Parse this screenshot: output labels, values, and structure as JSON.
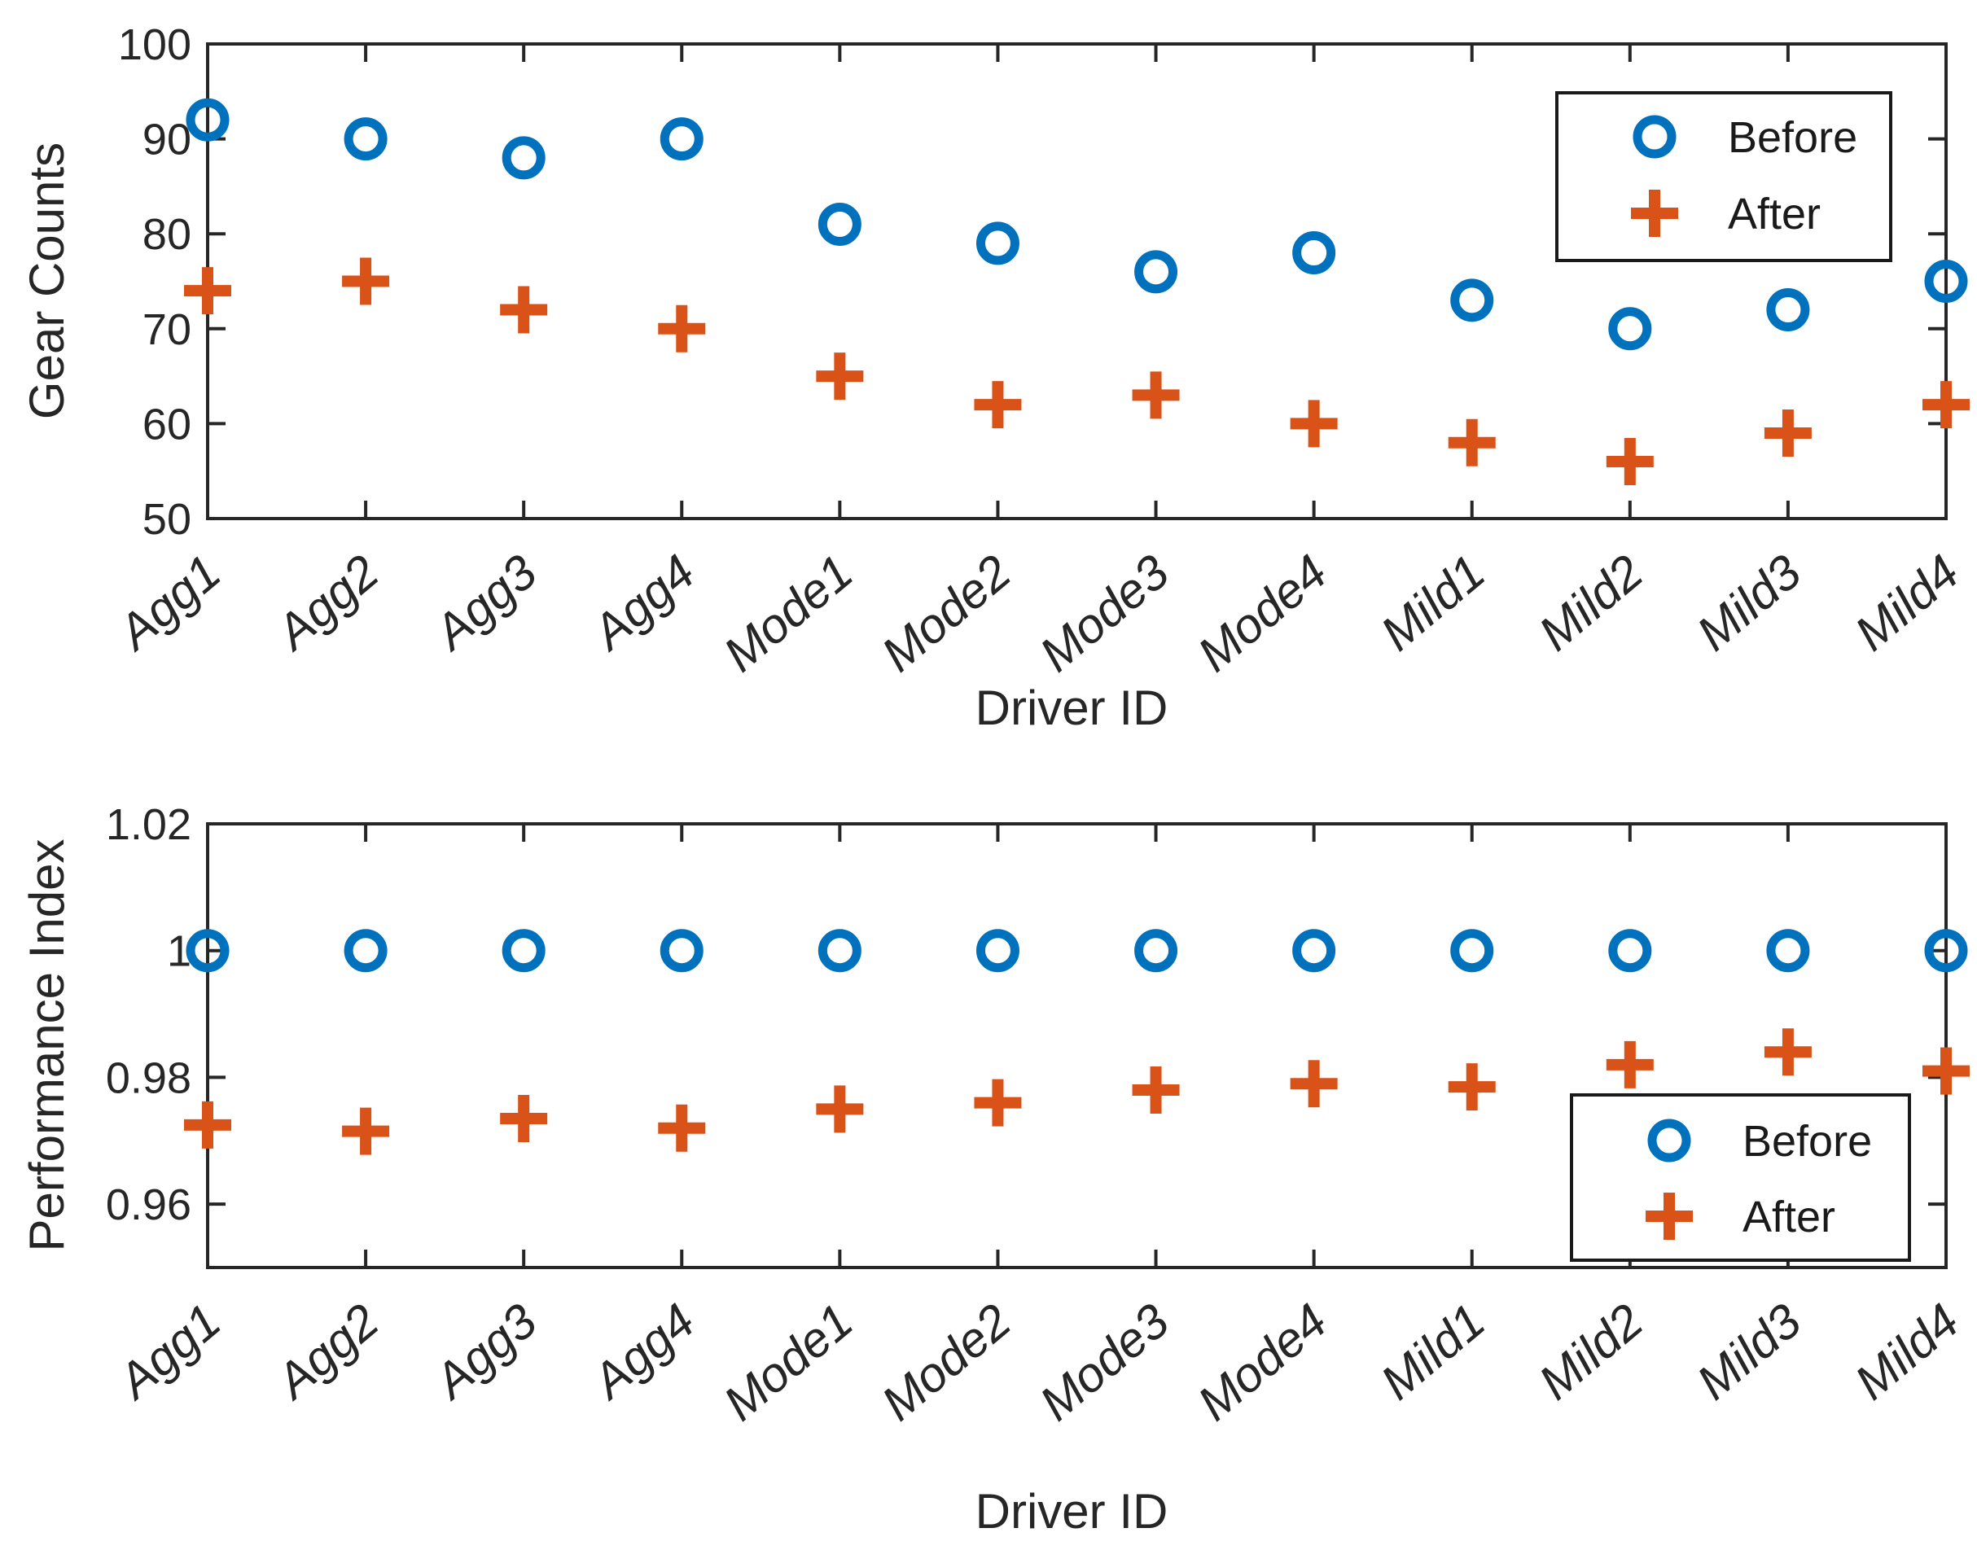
{
  "figure": {
    "background": "#ffffff",
    "colors": {
      "before": "#0072BD",
      "after": "#D95319",
      "axis": "#262626",
      "text": "#262626",
      "legend_border": "#1a1a1a",
      "legend_fill": "#ffffff"
    },
    "legend": {
      "before_label": "Before",
      "after_label": "After"
    }
  },
  "chart_data": [
    {
      "type": "scatter",
      "title": "",
      "xlabel": "Driver ID",
      "ylabel": "Gear Counts",
      "categories": [
        "Agg1",
        "Agg2",
        "Agg3",
        "Agg4",
        "Mode1",
        "Mode2",
        "Mode3",
        "Mode4",
        "Mild1",
        "Mild2",
        "Mild3",
        "Mild4"
      ],
      "ylim": [
        50,
        100
      ],
      "yticks": [
        50,
        60,
        70,
        80,
        90,
        100
      ],
      "ytick_labels": [
        "50",
        "60",
        "70",
        "80",
        "90",
        "100"
      ],
      "grid": false,
      "legend_position": "top-right",
      "series": [
        {
          "name": "Before",
          "marker": "circle",
          "color": "#0072BD",
          "values": [
            92,
            90,
            88,
            90,
            81,
            79,
            76,
            78,
            73,
            70,
            72,
            75
          ]
        },
        {
          "name": "After",
          "marker": "plus",
          "color": "#D95319",
          "values": [
            74,
            75,
            72,
            70,
            65,
            62,
            63,
            60,
            58,
            56,
            59,
            62
          ]
        }
      ]
    },
    {
      "type": "scatter",
      "title": "",
      "xlabel": "Driver ID",
      "ylabel": "Performance Index",
      "categories": [
        "Agg1",
        "Agg2",
        "Agg3",
        "Agg4",
        "Mode1",
        "Mode2",
        "Mode3",
        "Mode4",
        "Mild1",
        "Mild2",
        "Mild3",
        "Mild4"
      ],
      "ylim": [
        0.95,
        1.02
      ],
      "yticks": [
        0.96,
        0.98,
        1.0,
        1.02
      ],
      "ytick_labels": [
        "0.96",
        "0.98",
        "1",
        "1.02"
      ],
      "grid": false,
      "legend_position": "bottom-right",
      "series": [
        {
          "name": "Before",
          "marker": "circle",
          "color": "#0072BD",
          "values": [
            1.0,
            1.0,
            1.0,
            1.0,
            1.0,
            1.0,
            1.0,
            1.0,
            1.0,
            1.0,
            1.0,
            1.0
          ]
        },
        {
          "name": "After",
          "marker": "plus",
          "color": "#D95319",
          "values": [
            0.9725,
            0.9715,
            0.9735,
            0.972,
            0.975,
            0.976,
            0.978,
            0.979,
            0.9785,
            0.982,
            0.984,
            0.981
          ]
        }
      ]
    }
  ]
}
